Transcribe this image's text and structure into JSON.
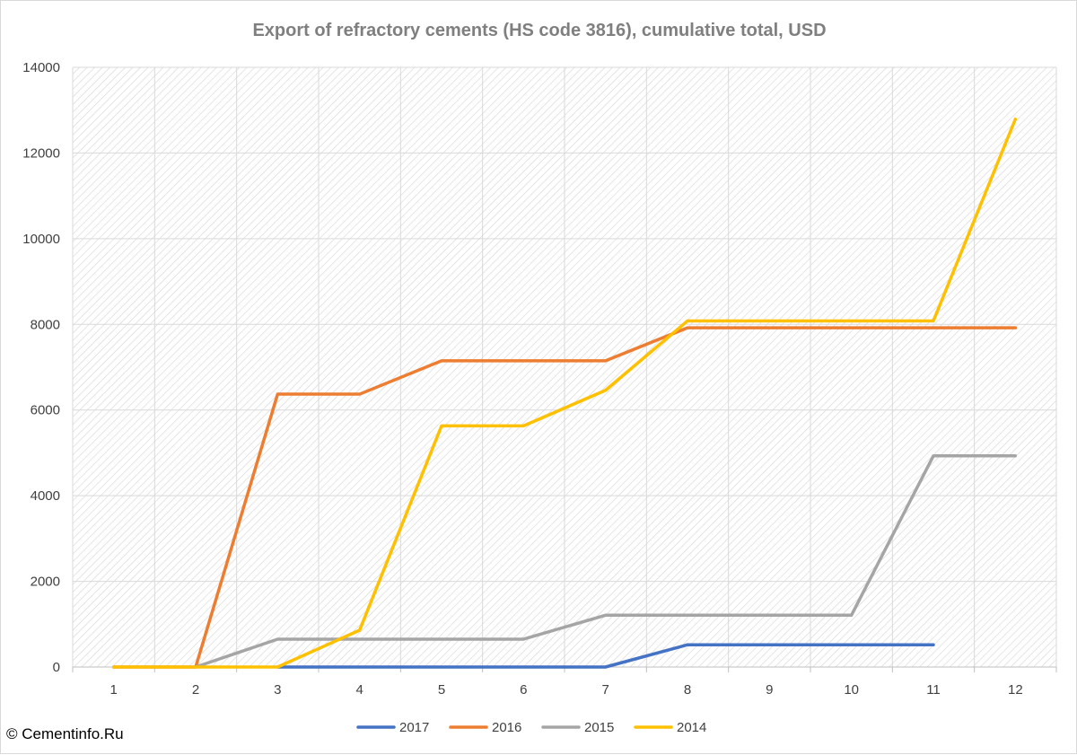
{
  "chart_data": {
    "type": "line",
    "title": "Export of refractory cements (HS code 3816), cumulative total, USD",
    "xlabel": "",
    "ylabel": "",
    "x": [
      1,
      2,
      3,
      4,
      5,
      6,
      7,
      8,
      9,
      10,
      11,
      12
    ],
    "ylim": [
      0,
      14000
    ],
    "yticks": [
      0,
      2000,
      4000,
      6000,
      8000,
      10000,
      12000,
      14000
    ],
    "grid": true,
    "legend_position": "bottom",
    "series": [
      {
        "name": "2017",
        "color": "#4472c4",
        "values": [
          null,
          null,
          0,
          0,
          0,
          0,
          0,
          520,
          520,
          520,
          520,
          null
        ]
      },
      {
        "name": "2016",
        "color": "#ed7d31",
        "values": [
          0,
          0,
          6370,
          6370,
          7150,
          7150,
          7150,
          7920,
          7920,
          7920,
          7920,
          7920
        ]
      },
      {
        "name": "2015",
        "color": "#a5a5a5",
        "values": [
          null,
          0,
          650,
          650,
          650,
          650,
          1210,
          1210,
          1210,
          1210,
          4930,
          4930
        ]
      },
      {
        "name": "2014",
        "color": "#ffc000",
        "values": [
          0,
          0,
          0,
          860,
          5630,
          5630,
          6460,
          8080,
          8080,
          8080,
          8080,
          12790
        ]
      }
    ]
  },
  "footer": {
    "copyright": "© Cementinfo.Ru"
  }
}
